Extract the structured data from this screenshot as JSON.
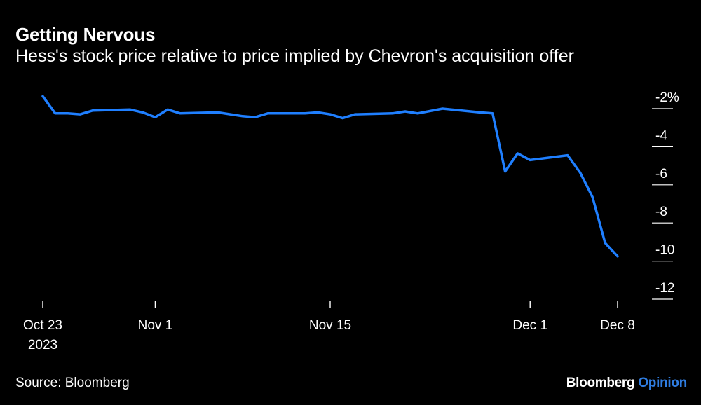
{
  "title": "Getting Nervous",
  "subtitle": "Hess's stock price relative to price implied by Chevron's acquisition offer",
  "source": "Source: Bloomberg",
  "brand": {
    "name": "Bloomberg",
    "sub": "Opinion"
  },
  "colors": {
    "background": "#000000",
    "line": "#1f7fff",
    "text": "#ffffff",
    "axis": "#ffffff",
    "brand_accent": "#2f7de1"
  },
  "chart_data": {
    "type": "line",
    "title": "Getting Nervous",
    "subtitle": "Hess's stock price relative to price implied by Chevron's acquisition offer",
    "xlabel": "",
    "ylabel": "",
    "y_unit": "%",
    "ylim": [
      -12,
      -2
    ],
    "y_axis_side": "right",
    "grid": false,
    "x_range": [
      "2023-10-23",
      "2023-12-08"
    ],
    "x_ticks": [
      {
        "date": "2023-10-23",
        "label": "Oct 23",
        "sublabel": "2023"
      },
      {
        "date": "2023-11-01",
        "label": "Nov 1"
      },
      {
        "date": "2023-11-15",
        "label": "Nov 15"
      },
      {
        "date": "2023-12-01",
        "label": "Dec 1"
      },
      {
        "date": "2023-12-08",
        "label": "Dec 8"
      }
    ],
    "y_ticks": [
      {
        "value": -2,
        "label": "-2%"
      },
      {
        "value": -4,
        "label": "-4"
      },
      {
        "value": -6,
        "label": "-6"
      },
      {
        "value": -8,
        "label": "-8"
      },
      {
        "value": -10,
        "label": "-10"
      },
      {
        "value": -12,
        "label": "-12"
      }
    ],
    "series": [
      {
        "color": "#1f7fff",
        "points": [
          {
            "date": "2023-10-23",
            "value": -1.9
          },
          {
            "date": "2023-10-24",
            "value": -2.8
          },
          {
            "date": "2023-10-25",
            "value": -2.8
          },
          {
            "date": "2023-10-26",
            "value": -2.85
          },
          {
            "date": "2023-10-27",
            "value": -2.65
          },
          {
            "date": "2023-10-30",
            "value": -2.6
          },
          {
            "date": "2023-10-31",
            "value": -2.75
          },
          {
            "date": "2023-11-01",
            "value": -3.0
          },
          {
            "date": "2023-11-02",
            "value": -2.6
          },
          {
            "date": "2023-11-03",
            "value": -2.8
          },
          {
            "date": "2023-11-06",
            "value": -2.75
          },
          {
            "date": "2023-11-07",
            "value": -2.85
          },
          {
            "date": "2023-11-08",
            "value": -2.95
          },
          {
            "date": "2023-11-09",
            "value": -3.0
          },
          {
            "date": "2023-11-10",
            "value": -2.8
          },
          {
            "date": "2023-11-13",
            "value": -2.8
          },
          {
            "date": "2023-11-14",
            "value": -2.75
          },
          {
            "date": "2023-11-15",
            "value": -2.85
          },
          {
            "date": "2023-11-16",
            "value": -3.05
          },
          {
            "date": "2023-11-17",
            "value": -2.85
          },
          {
            "date": "2023-11-20",
            "value": -2.8
          },
          {
            "date": "2023-11-21",
            "value": -2.7
          },
          {
            "date": "2023-11-22",
            "value": -2.8
          },
          {
            "date": "2023-11-24",
            "value": -2.55
          },
          {
            "date": "2023-11-27",
            "value": -2.75
          },
          {
            "date": "2023-11-28",
            "value": -2.8
          },
          {
            "date": "2023-11-29",
            "value": -5.85
          },
          {
            "date": "2023-11-30",
            "value": -4.9
          },
          {
            "date": "2023-12-01",
            "value": -5.25
          },
          {
            "date": "2023-12-04",
            "value": -5.0
          },
          {
            "date": "2023-12-05",
            "value": -5.9
          },
          {
            "date": "2023-12-06",
            "value": -7.2
          },
          {
            "date": "2023-12-07",
            "value": -9.6
          },
          {
            "date": "2023-12-08",
            "value": -10.3
          }
        ]
      }
    ]
  }
}
